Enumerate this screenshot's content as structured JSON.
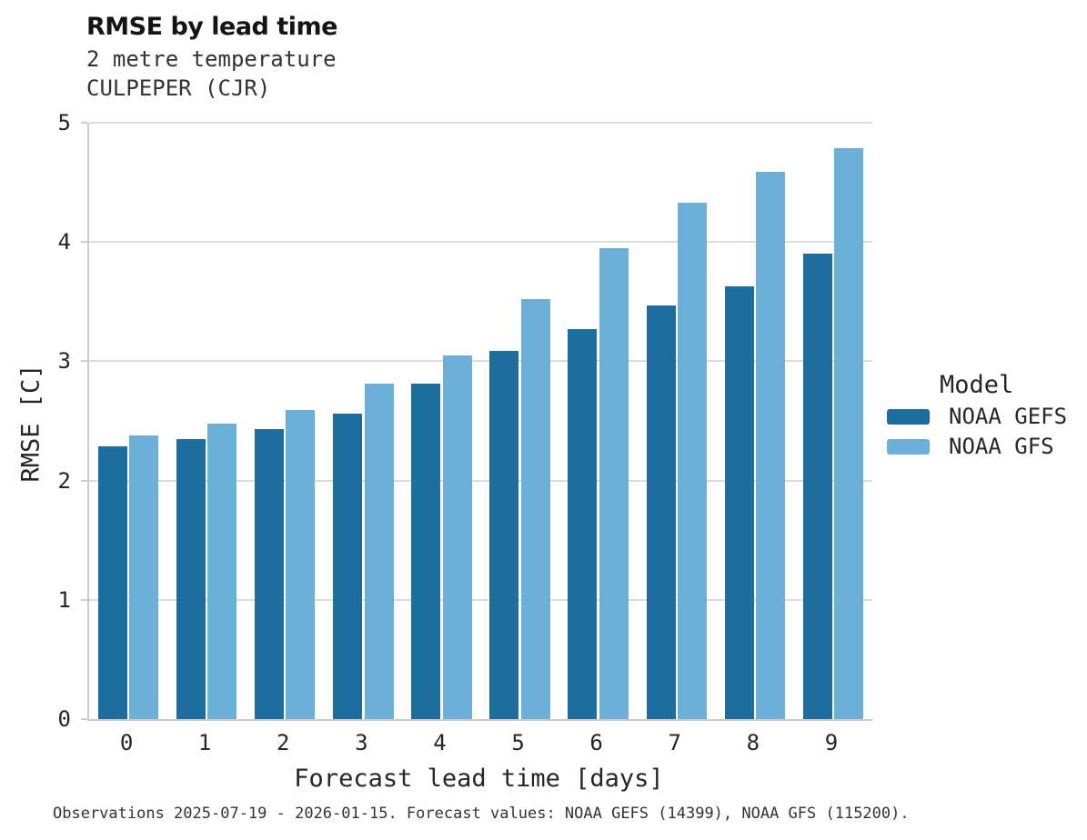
{
  "title": "RMSE by lead time",
  "subtitle_line1": "2 metre temperature",
  "subtitle_line2": "CULPEPER (CJR)",
  "caption": "Observations 2025-07-19 - 2026-01-15. Forecast values: NOAA GEFS (14399), NOAA GFS (115200).",
  "chart_data": {
    "type": "bar",
    "title": "RMSE by lead time",
    "subtitle": [
      "2 metre temperature",
      "CULPEPER (CJR)"
    ],
    "categories": [
      "0",
      "1",
      "2",
      "3",
      "4",
      "5",
      "6",
      "7",
      "8",
      "9"
    ],
    "series": [
      {
        "name": "NOAA GEFS",
        "color": "#1d6d9e",
        "values": [
          2.29,
          2.35,
          2.43,
          2.56,
          2.81,
          3.09,
          3.27,
          3.47,
          3.63,
          3.9
        ]
      },
      {
        "name": "NOAA GFS",
        "color": "#6cb0d8",
        "values": [
          2.38,
          2.48,
          2.59,
          2.81,
          3.05,
          3.52,
          3.95,
          4.33,
          4.59,
          4.79
        ]
      }
    ],
    "xlabel": "Forecast lead time [days]",
    "ylabel": "RMSE [C]",
    "ylim": [
      0,
      5
    ],
    "yticks": [
      0,
      1,
      2,
      3,
      4,
      5
    ],
    "grid": true,
    "gridline_color": "#dcdcdc",
    "axis_color": "#cccccc",
    "tick_label_color": "#262626",
    "legend_title": "Model",
    "legend_position": "right"
  }
}
